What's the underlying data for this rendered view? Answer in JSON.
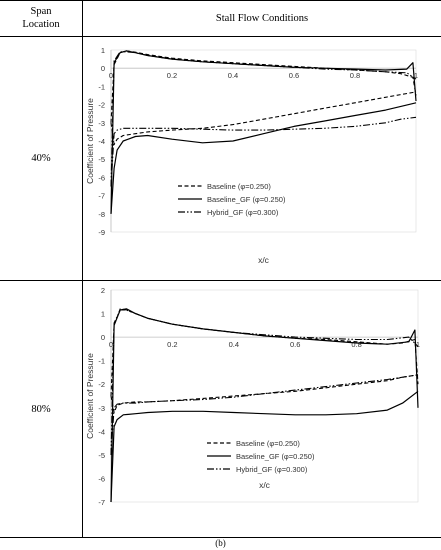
{
  "table": {
    "col1_header_line1": "Span",
    "col1_header_line2": "Location",
    "col2_header": "Stall Flow Conditions",
    "rows": [
      {
        "label": "40%"
      },
      {
        "label": "80%"
      }
    ]
  },
  "caption": "(b)",
  "chart_data": [
    {
      "type": "line",
      "xlabel": "x/c",
      "ylabel": "Coefficient of Pressure",
      "xlim": [
        0,
        1
      ],
      "ylim": [
        -9,
        1
      ],
      "xticks": [
        "0",
        "0.2",
        "0.4",
        "0.6",
        "0.8",
        "1"
      ],
      "yticks": [
        "1",
        "0",
        "-1",
        "-2",
        "-3",
        "-4",
        "-5",
        "-6",
        "-7",
        "-8",
        "-9"
      ],
      "xaxis_at_y": 0,
      "legend": {
        "placement": "lower-center"
      },
      "series": [
        {
          "name": "Baseline (φ=0.250)",
          "style": "dashed",
          "upper": {
            "x": [
              0.0,
              0.01,
              0.03,
              0.05,
              0.08,
              0.12,
              0.2,
              0.3,
              0.4,
              0.5,
              0.6,
              0.7,
              0.8,
              0.9,
              0.95,
              0.99,
              1.0
            ],
            "y": [
              -3.0,
              0.2,
              0.85,
              0.95,
              0.88,
              0.75,
              0.55,
              0.4,
              0.3,
              0.2,
              0.1,
              0.0,
              -0.1,
              -0.2,
              -0.3,
              -0.5,
              -1.5
            ]
          },
          "lower": {
            "x": [
              0.0,
              0.01,
              0.02,
              0.04,
              0.08,
              0.12,
              0.2,
              0.3,
              0.4,
              0.5,
              0.6,
              0.7,
              0.8,
              0.9,
              0.95,
              1.0
            ],
            "y": [
              -3.0,
              -4.2,
              -3.9,
              -3.7,
              -3.6,
              -3.5,
              -3.4,
              -3.3,
              -3.1,
              -2.8,
              -2.5,
              -2.2,
              -1.9,
              -1.6,
              -1.45,
              -1.3
            ]
          }
        },
        {
          "name": "Baseline_GF (φ=0.250)",
          "style": "solid",
          "upper": {
            "x": [
              0.0,
              0.01,
              0.03,
              0.05,
              0.08,
              0.12,
              0.2,
              0.3,
              0.4,
              0.5,
              0.6,
              0.7,
              0.8,
              0.9,
              0.97,
              0.99,
              1.0
            ],
            "y": [
              -8.0,
              0.3,
              0.85,
              0.95,
              0.85,
              0.7,
              0.5,
              0.35,
              0.25,
              0.15,
              0.05,
              0.0,
              -0.05,
              -0.1,
              -0.05,
              0.3,
              -1.8
            ]
          },
          "lower": {
            "x": [
              0.0,
              0.01,
              0.02,
              0.04,
              0.08,
              0.12,
              0.2,
              0.3,
              0.4,
              0.5,
              0.6,
              0.7,
              0.8,
              0.9,
              0.95,
              1.0
            ],
            "y": [
              -8.0,
              -5.5,
              -4.5,
              -4.0,
              -3.75,
              -3.7,
              -3.9,
              -4.1,
              -4.0,
              -3.6,
              -3.2,
              -2.9,
              -2.6,
              -2.3,
              -2.1,
              -1.9
            ]
          }
        },
        {
          "name": "Hybrid_GF (φ=0.300)",
          "style": "dash-dot-dot",
          "upper": {
            "x": [
              0.0,
              0.01,
              0.03,
              0.05,
              0.08,
              0.12,
              0.2,
              0.3,
              0.4,
              0.5,
              0.6,
              0.7,
              0.8,
              0.9,
              0.97,
              1.0
            ],
            "y": [
              -6.5,
              0.4,
              0.9,
              0.9,
              0.85,
              0.7,
              0.5,
              0.35,
              0.25,
              0.15,
              0.05,
              -0.05,
              -0.1,
              -0.2,
              -0.25,
              -0.6
            ]
          },
          "lower": {
            "x": [
              0.0,
              0.01,
              0.02,
              0.04,
              0.08,
              0.12,
              0.2,
              0.3,
              0.4,
              0.5,
              0.6,
              0.7,
              0.8,
              0.9,
              0.95,
              1.0
            ],
            "y": [
              -6.5,
              -3.6,
              -3.4,
              -3.3,
              -3.3,
              -3.3,
              -3.3,
              -3.35,
              -3.4,
              -3.4,
              -3.35,
              -3.3,
              -3.2,
              -3.0,
              -2.8,
              -2.7
            ]
          }
        }
      ]
    },
    {
      "type": "line",
      "xlabel": "x/c",
      "ylabel": "Coefficient of Pressure",
      "xlim": [
        0,
        1
      ],
      "ylim": [
        -7,
        2
      ],
      "xticks": [
        "0",
        "0.2",
        "0.4",
        "0.6",
        "0.8",
        "1"
      ],
      "yticks": [
        "2",
        "1",
        "0",
        "-1",
        "-2",
        "-3",
        "-4",
        "-5",
        "-6",
        "-7"
      ],
      "xaxis_at_y": 0,
      "legend": {
        "placement": "lower-right"
      },
      "series": [
        {
          "name": "Baseline (φ=0.250)",
          "style": "dashed",
          "upper": {
            "x": [
              0.0,
              0.01,
              0.03,
              0.05,
              0.08,
              0.12,
              0.2,
              0.3,
              0.4,
              0.5,
              0.6,
              0.7,
              0.8,
              0.9,
              0.95,
              0.99,
              1.0
            ],
            "y": [
              -2.5,
              0.5,
              1.2,
              1.15,
              1.0,
              0.8,
              0.55,
              0.35,
              0.2,
              0.05,
              -0.05,
              -0.1,
              -0.2,
              -0.3,
              -0.25,
              -0.1,
              -2.0
            ]
          },
          "lower": {
            "x": [
              0.0,
              0.01,
              0.02,
              0.04,
              0.08,
              0.12,
              0.2,
              0.3,
              0.4,
              0.5,
              0.6,
              0.7,
              0.8,
              0.9,
              0.95,
              1.0
            ],
            "y": [
              -2.5,
              -3.2,
              -2.9,
              -2.8,
              -2.75,
              -2.75,
              -2.7,
              -2.6,
              -2.5,
              -2.4,
              -2.3,
              -2.15,
              -2.0,
              -1.85,
              -1.7,
              -1.6
            ]
          }
        },
        {
          "name": "Baseline_GF (φ=0.250)",
          "style": "solid",
          "upper": {
            "x": [
              0.0,
              0.01,
              0.03,
              0.05,
              0.08,
              0.12,
              0.2,
              0.3,
              0.4,
              0.5,
              0.6,
              0.7,
              0.8,
              0.9,
              0.97,
              0.99,
              1.0
            ],
            "y": [
              -7.0,
              0.5,
              1.15,
              1.2,
              1.0,
              0.8,
              0.55,
              0.35,
              0.2,
              0.05,
              -0.05,
              -0.15,
              -0.25,
              -0.3,
              -0.2,
              0.3,
              -3.0
            ]
          },
          "lower": {
            "x": [
              0.0,
              0.01,
              0.02,
              0.04,
              0.08,
              0.12,
              0.2,
              0.3,
              0.4,
              0.5,
              0.6,
              0.7,
              0.8,
              0.9,
              0.95,
              1.0
            ],
            "y": [
              -7.0,
              -3.8,
              -3.5,
              -3.3,
              -3.25,
              -3.2,
              -3.15,
              -3.15,
              -3.2,
              -3.25,
              -3.3,
              -3.3,
              -3.25,
              -3.1,
              -2.8,
              -2.3
            ]
          }
        },
        {
          "name": "Hybrid_GF (φ=0.300)",
          "style": "dash-dot-dot",
          "upper": {
            "x": [
              0.0,
              0.01,
              0.03,
              0.05,
              0.08,
              0.12,
              0.2,
              0.3,
              0.4,
              0.5,
              0.6,
              0.7,
              0.8,
              0.9,
              0.97,
              1.0
            ],
            "y": [
              -5.0,
              0.6,
              1.15,
              1.15,
              1.0,
              0.8,
              0.55,
              0.35,
              0.2,
              0.1,
              0.0,
              -0.05,
              -0.1,
              -0.1,
              0.0,
              -0.4
            ]
          },
          "lower": {
            "x": [
              0.0,
              0.01,
              0.02,
              0.04,
              0.08,
              0.12,
              0.2,
              0.3,
              0.4,
              0.5,
              0.6,
              0.7,
              0.8,
              0.9,
              0.95,
              1.0
            ],
            "y": [
              -5.0,
              -3.0,
              -2.85,
              -2.8,
              -2.8,
              -2.75,
              -2.7,
              -2.65,
              -2.55,
              -2.4,
              -2.25,
              -2.1,
              -1.95,
              -1.8,
              -1.7,
              -1.6
            ]
          }
        }
      ]
    }
  ]
}
